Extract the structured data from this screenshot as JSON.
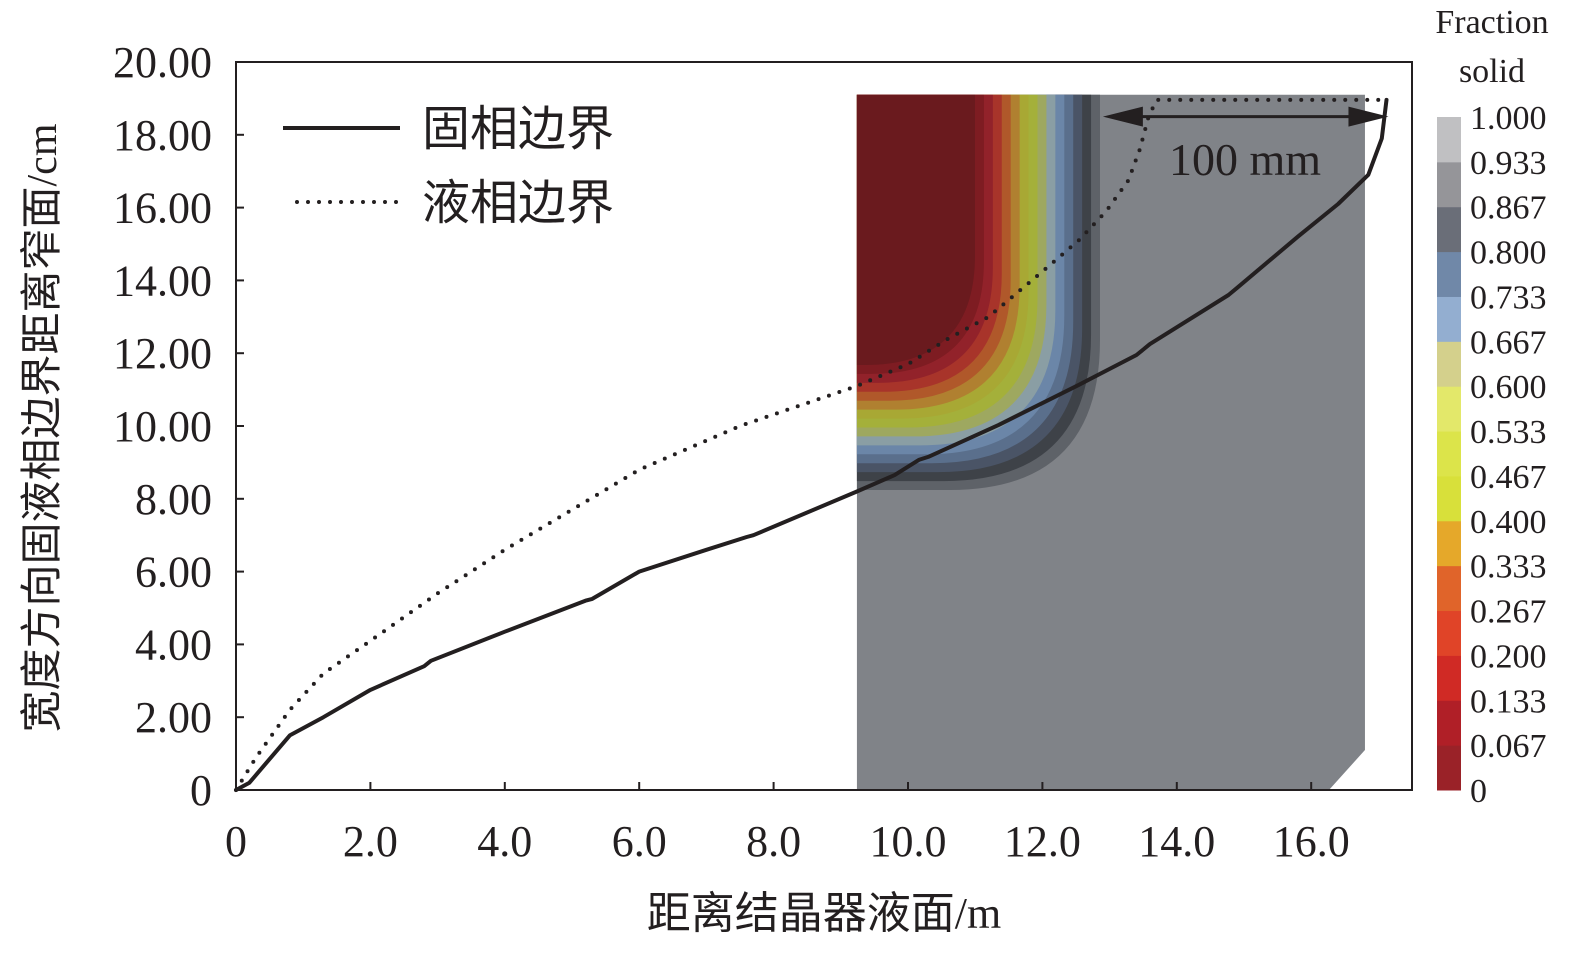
{
  "chart_data": {
    "type": "line",
    "xlabel": "距离结晶器液面/m",
    "ylabel": "宽度方向固液相边界距离窄面/cm",
    "xlim": [
      0,
      17.5
    ],
    "ylim": [
      0,
      20
    ],
    "xticks": [
      "0",
      "2.0",
      "4.0",
      "6.0",
      "8.0",
      "10.0",
      "12.0",
      "14.0",
      "16.0"
    ],
    "xtick_values": [
      0,
      2,
      4,
      6,
      8,
      10,
      12,
      14,
      16
    ],
    "yticks": [
      "0",
      "2.00",
      "4.00",
      "6.00",
      "8.00",
      "10.00",
      "12.00",
      "14.00",
      "16.00",
      "18.00",
      "20.00"
    ],
    "ytick_values": [
      0,
      2,
      4,
      6,
      8,
      10,
      12,
      14,
      16,
      18,
      20
    ],
    "legend_position": "top-left",
    "series": [
      {
        "name": "固相边界",
        "style": "solid",
        "color": "#231f20",
        "x": [
          0,
          0.2,
          0.8,
          1.3,
          2.0,
          2.8,
          2.9,
          4.0,
          5.2,
          5.3,
          6.0,
          7.0,
          7.6,
          7.7,
          9.24,
          9.8,
          10.16,
          10.3,
          11.35,
          12.54,
          13.4,
          13.6,
          14.77,
          14.9,
          15.8,
          16.4,
          16.85,
          17.05,
          17.12
        ],
        "y": [
          0,
          0.2,
          1.5,
          2.0,
          2.75,
          3.4,
          3.55,
          4.35,
          5.2,
          5.25,
          6.0,
          6.6,
          6.95,
          7.0,
          8.2,
          8.65,
          9.07,
          9.15,
          10.03,
          11.13,
          11.95,
          12.25,
          13.6,
          13.8,
          15.2,
          16.1,
          16.9,
          17.9,
          18.96
        ]
      },
      {
        "name": "液相边界",
        "style": "dotted",
        "color": "#231f20",
        "x": [
          0,
          0.3,
          0.8,
          1.3,
          2.0,
          3.0,
          4.0,
          5.0,
          6.0,
          7.5,
          9.24,
          10.0,
          10.6,
          11.2,
          11.65,
          12.1,
          12.54,
          12.95,
          13.28,
          13.45,
          13.58,
          13.7,
          15.0,
          16.5,
          17.15
        ],
        "y": [
          0,
          0.9,
          2.2,
          3.2,
          4.1,
          5.4,
          6.6,
          7.7,
          8.8,
          10.0,
          11.1,
          11.7,
          12.4,
          13.0,
          13.7,
          14.4,
          15.1,
          15.9,
          16.75,
          17.6,
          18.5,
          18.96,
          18.96,
          18.96,
          18.96
        ]
      }
    ],
    "contour": {
      "title": "Fraction solid",
      "x_range": [
        9.24,
        16.8
      ],
      "y_top": 19.1,
      "levels": [
        "0",
        "0.067",
        "0.133",
        "0.200",
        "0.267",
        "0.333",
        "0.400",
        "0.467",
        "0.533",
        "0.600",
        "0.667",
        "0.733",
        "0.800",
        "0.867",
        "0.933",
        "1.000"
      ],
      "colorbar_colors": [
        "#9a2228",
        "#b01f27",
        "#d02a25",
        "#e04428",
        "#e0642a",
        "#e5a82a",
        "#d8e03a",
        "#dce44a",
        "#e3e86a",
        "#d4d08c",
        "#93aed0",
        "#7088a8",
        "#6a6e78",
        "#959599",
        "#c0c0c2"
      ],
      "field_colors_outer_to_inner": [
        "#808388",
        "#5e6268",
        "#3e4248",
        "#4a5466",
        "#5a6f8c",
        "#6b86a8",
        "#8a9ea4",
        "#9ea860",
        "#a4b03a",
        "#a8a834",
        "#b08030",
        "#b0582a",
        "#a8342a",
        "#92222a",
        "#7e1c22",
        "#6a1a1e"
      ]
    },
    "annotation": {
      "label": "100 mm",
      "from_x": 12.9,
      "to_x": 17.15,
      "y": 18.5
    }
  }
}
